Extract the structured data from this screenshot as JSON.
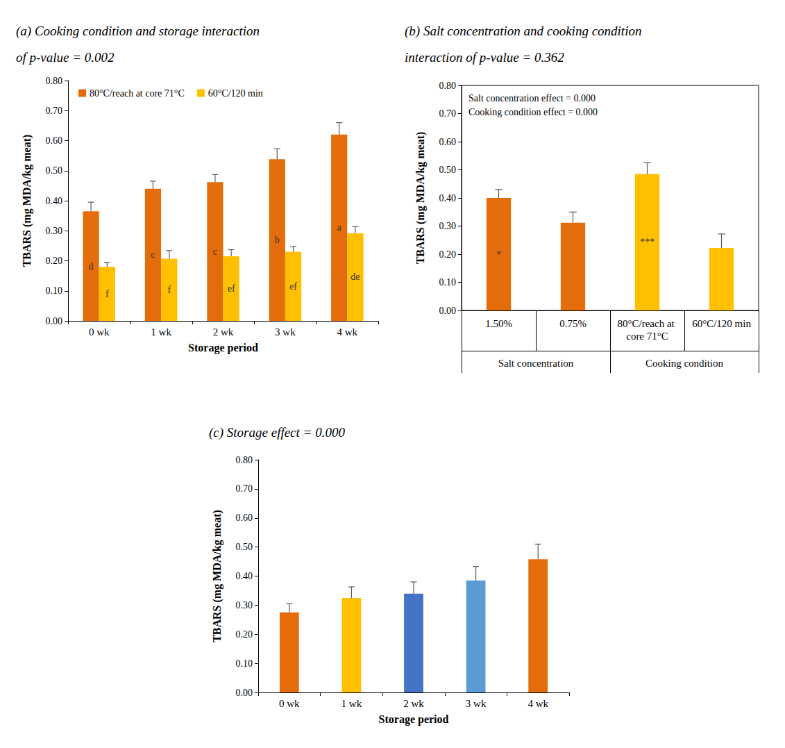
{
  "chart_data": [
    {
      "type": "bar",
      "title": "(a) Cooking condition and storage interaction of p-value = 0.002",
      "categories": [
        "0 wk",
        "1 wk",
        "2 wk",
        "3 wk",
        "4 wk"
      ],
      "series": [
        {
          "name": "80°C/reach at core 71°C",
          "color": "#E46C0A",
          "values": [
            0.365,
            0.44,
            0.462,
            0.538,
            0.62
          ],
          "errors": [
            0.03,
            0.025,
            0.025,
            0.035,
            0.04
          ],
          "annotations": [
            "d",
            "c",
            "c",
            "b",
            "a"
          ]
        },
        {
          "name": "60°C/120 min",
          "color": "#FFC000",
          "values": [
            0.18,
            0.207,
            0.215,
            0.23,
            0.292
          ],
          "errors": [
            0.015,
            0.027,
            0.022,
            0.017,
            0.022
          ],
          "annotations": [
            "f",
            "f",
            "ef",
            "ef",
            "de"
          ]
        }
      ],
      "xlabel": "Storage period",
      "ylabel": "TBARS (mg MDA/kg meat)",
      "ylim": [
        0,
        0.8
      ],
      "yticks": [
        {
          "value": 0,
          "label": "0.00"
        },
        {
          "value": 0.1,
          "label": "0.10"
        },
        {
          "value": 0.2,
          "label": "0.20"
        },
        {
          "value": 0.3,
          "label": "0.30"
        },
        {
          "value": 0.4,
          "label": "0.40"
        },
        {
          "value": 0.5,
          "label": "0.50"
        },
        {
          "value": 0.6,
          "label": "0.60"
        },
        {
          "value": 0.7,
          "label": "0.70"
        },
        {
          "value": 0.8,
          "label": "0.80"
        }
      ],
      "grid": false,
      "legend": "upper left"
    },
    {
      "type": "bar",
      "title": "(b) Salt concentration and cooking condition interaction of p-value = 0.362",
      "categories": [
        "1.50%",
        "0.75%",
        "80°C/reach at core 71°C",
        "60°C/120 min"
      ],
      "values": [
        0.4,
        0.312,
        0.485,
        0.222
      ],
      "errors": [
        0.03,
        0.038,
        0.04,
        0.05
      ],
      "colors": [
        "#E46C0A",
        "#E46C0A",
        "#FFC000",
        "#FFC000"
      ],
      "annotations": [
        "*",
        null,
        "***",
        null
      ],
      "groups": [
        {
          "name": "Salt concentration",
          "categories": [
            "1.50%",
            "0.75%"
          ]
        },
        {
          "name": "Cooking condition",
          "categories": [
            "80°C/reach at core 71°C",
            "60°C/120 min"
          ]
        }
      ],
      "notes": [
        "Salt concentration effect = 0.000",
        "Cooking condition effect = 0.000"
      ],
      "ylabel": "TBARS (mg MDA/kg meat)",
      "ylim": [
        0,
        0.8
      ],
      "yticks": [
        {
          "value": 0,
          "label": "0.00"
        },
        {
          "value": 0.1,
          "label": "0.10"
        },
        {
          "value": 0.2,
          "label": "0.20"
        },
        {
          "value": 0.3,
          "label": "0.30"
        },
        {
          "value": 0.4,
          "label": "0.40"
        },
        {
          "value": 0.5,
          "label": "0.50"
        },
        {
          "value": 0.6,
          "label": "0.60"
        },
        {
          "value": 0.7,
          "label": "0.70"
        },
        {
          "value": 0.8,
          "label": "0.80"
        }
      ],
      "grid": false
    },
    {
      "type": "bar",
      "title": "(c) Storage effect = 0.000",
      "categories": [
        "0 wk",
        "1 wk",
        "2 wk",
        "3 wk",
        "4 wk"
      ],
      "values": [
        0.275,
        0.325,
        0.34,
        0.385,
        0.458
      ],
      "errors": [
        0.03,
        0.038,
        0.04,
        0.048,
        0.052
      ],
      "colors": [
        "#E46C0A",
        "#FFC000",
        "#4472C4",
        "#5B9BD5",
        "#E46C0A"
      ],
      "xlabel": "Storage period",
      "ylabel": "TBARS (mg MDA/kg meat)",
      "ylim": [
        0,
        0.8
      ],
      "yticks": [
        {
          "value": 0,
          "label": "0.00"
        },
        {
          "value": 0.1,
          "label": "0.10"
        },
        {
          "value": 0.2,
          "label": "0.20"
        },
        {
          "value": 0.3,
          "label": "0.30"
        },
        {
          "value": 0.4,
          "label": "0.40"
        },
        {
          "value": 0.5,
          "label": "0.50"
        },
        {
          "value": 0.6,
          "label": "0.60"
        },
        {
          "value": 0.7,
          "label": "0.70"
        },
        {
          "value": 0.8,
          "label": "0.80"
        }
      ],
      "grid": false
    }
  ]
}
